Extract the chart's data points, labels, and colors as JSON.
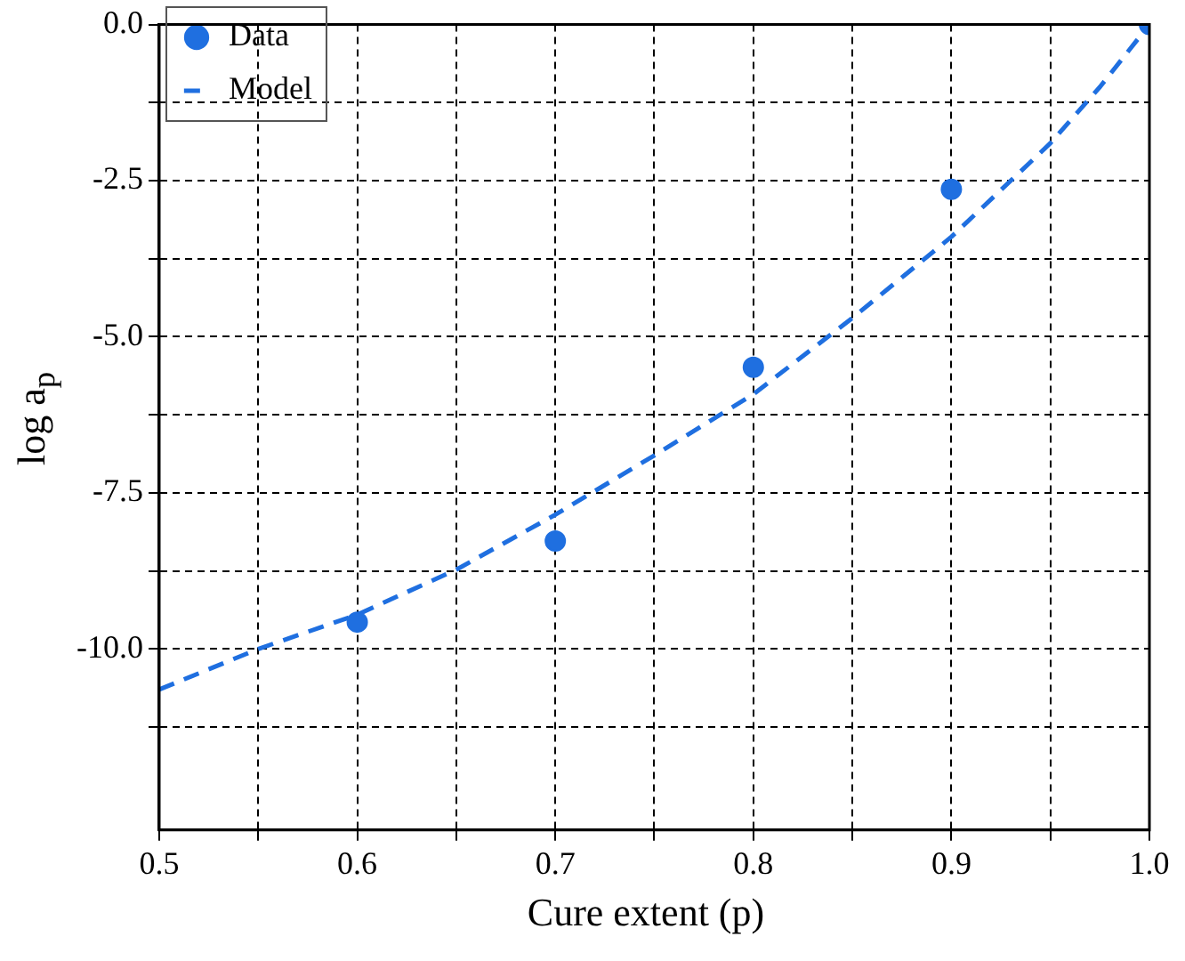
{
  "chart_data": {
    "type": "scatter",
    "xlabel": "Cure extent (p)",
    "ylabel": "log a$_{p}$",
    "xlim": [
      0.5,
      1.0
    ],
    "ylim": [
      -12.9,
      0
    ],
    "xticks": [
      {
        "value": 0.5,
        "label": "0.5"
      },
      {
        "value": 0.55,
        "label": null
      },
      {
        "value": 0.6,
        "label": "0.6"
      },
      {
        "value": 0.65,
        "label": null
      },
      {
        "value": 0.7,
        "label": "0.7"
      },
      {
        "value": 0.75,
        "label": null
      },
      {
        "value": 0.8,
        "label": "0.8"
      },
      {
        "value": 0.85,
        "label": null
      },
      {
        "value": 0.9,
        "label": "0.9"
      },
      {
        "value": 0.95,
        "label": null
      },
      {
        "value": 1.0,
        "label": "1.0"
      }
    ],
    "yticks": [
      {
        "value": -11.25,
        "label": null
      },
      {
        "value": -10,
        "label": "-10.0"
      },
      {
        "value": -8.75,
        "label": null
      },
      {
        "value": -7.5,
        "label": "-7.5"
      },
      {
        "value": -6.25,
        "label": null
      },
      {
        "value": -5,
        "label": "-5.0"
      },
      {
        "value": -3.75,
        "label": null
      },
      {
        "value": -2.5,
        "label": "-2.5"
      },
      {
        "value": -1.25,
        "label": null
      },
      {
        "value": 0,
        "label": "0.0"
      }
    ],
    "grid": true,
    "legend": "top left",
    "series": [
      {
        "name": "Data",
        "marker": "circle",
        "color": "#1f6fe0",
        "x": [
          0.6,
          0.7,
          0.8,
          0.9,
          1.0
        ],
        "values": [
          -9.57,
          -8.27,
          -5.49,
          -2.64,
          0
        ]
      },
      {
        "name": "Model",
        "type": "line",
        "marker": "none",
        "color": "#1f6fe0",
        "line_style": "dashed",
        "x": [
          0.5,
          0.55,
          0.6,
          0.65,
          0.7,
          0.75,
          0.8,
          0.85,
          0.9,
          0.95,
          0.975,
          1.0
        ],
        "values": [
          -10.65,
          -10.0,
          -9.45,
          -8.73,
          -7.85,
          -6.9,
          -5.92,
          -4.7,
          -3.4,
          -1.9,
          -1.0,
          0
        ]
      }
    ]
  }
}
